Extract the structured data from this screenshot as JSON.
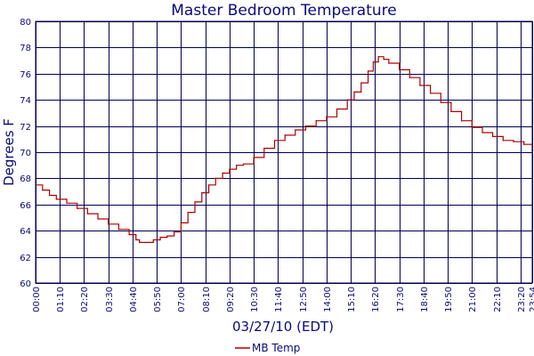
{
  "colors": {
    "text": "#0a0a7a",
    "grid": "#000050",
    "series": "#b00000",
    "background": "#ffffff"
  },
  "chart_data": {
    "type": "line",
    "title": "Master Bedroom Temperature",
    "xlabel": "03/27/10 (EDT)",
    "ylabel": "Degrees F",
    "ylim": [
      60,
      80
    ],
    "y_ticks": [
      60,
      62,
      64,
      66,
      68,
      70,
      72,
      74,
      76,
      78,
      80
    ],
    "x_range_minutes": [
      0,
      1434
    ],
    "x_ticks": [
      "00:00",
      "01:10",
      "02:20",
      "03:30",
      "04:40",
      "05:50",
      "07:00",
      "08:10",
      "09:20",
      "10:30",
      "11:40",
      "12:50",
      "14:00",
      "15:10",
      "16:20",
      "17:30",
      "18:40",
      "19:50",
      "21:00",
      "22:10",
      "23:20",
      "23:54"
    ],
    "grid": true,
    "legend_position": "bottom",
    "series": [
      {
        "name": "MB Temp",
        "x": [
          "00:00",
          "00:20",
          "00:40",
          "01:00",
          "01:30",
          "02:00",
          "02:30",
          "03:00",
          "03:30",
          "04:00",
          "04:30",
          "04:50",
          "05:00",
          "05:20",
          "05:40",
          "06:00",
          "06:20",
          "06:40",
          "07:00",
          "07:20",
          "07:40",
          "08:00",
          "08:20",
          "08:40",
          "09:00",
          "09:20",
          "09:40",
          "10:00",
          "10:30",
          "11:00",
          "11:30",
          "12:00",
          "12:30",
          "13:00",
          "13:30",
          "14:00",
          "14:30",
          "15:00",
          "15:20",
          "15:40",
          "16:00",
          "16:15",
          "16:30",
          "16:45",
          "17:00",
          "17:30",
          "18:00",
          "18:30",
          "19:00",
          "19:30",
          "20:00",
          "20:30",
          "21:00",
          "21:30",
          "22:00",
          "22:30",
          "23:00",
          "23:30",
          "23:54"
        ],
        "values": [
          67.5,
          67.1,
          66.7,
          66.4,
          66.1,
          65.7,
          65.3,
          64.9,
          64.5,
          64.1,
          63.7,
          63.3,
          63.1,
          63.1,
          63.3,
          63.5,
          63.6,
          63.9,
          64.6,
          65.4,
          66.2,
          66.9,
          67.5,
          68.0,
          68.4,
          68.7,
          69.0,
          69.1,
          69.6,
          70.3,
          70.9,
          71.3,
          71.7,
          72.0,
          72.4,
          72.7,
          73.3,
          74.0,
          74.6,
          75.3,
          76.2,
          76.9,
          77.3,
          77.1,
          76.8,
          76.3,
          75.7,
          75.1,
          74.5,
          73.8,
          73.1,
          72.4,
          71.9,
          71.5,
          71.2,
          70.9,
          70.8,
          70.6,
          70.1
        ]
      }
    ]
  }
}
